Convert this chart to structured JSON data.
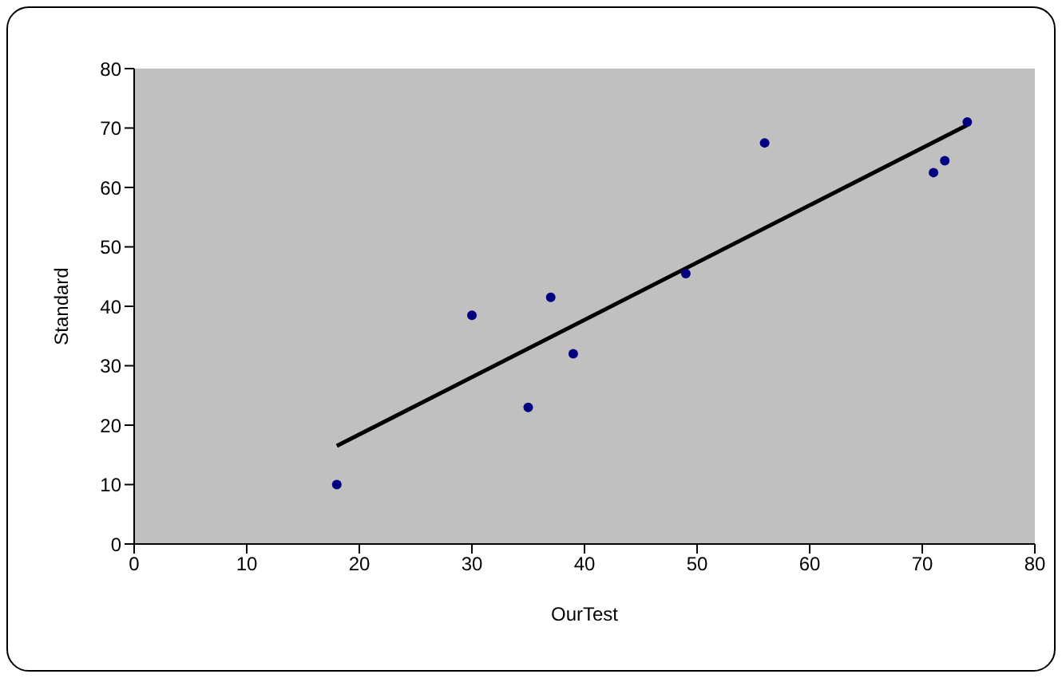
{
  "chart_data": {
    "type": "scatter",
    "xlabel": "OurTest",
    "ylabel": "Standard",
    "xlim": [
      0,
      80
    ],
    "ylim": [
      0,
      80
    ],
    "xticks": [
      0,
      10,
      20,
      30,
      40,
      50,
      60,
      70,
      80
    ],
    "yticks": [
      0,
      10,
      20,
      30,
      40,
      50,
      60,
      70,
      80
    ],
    "marker": "circle",
    "series": [
      {
        "color": "#000080",
        "x": [
          18,
          30,
          37,
          39,
          35,
          56,
          49,
          71,
          72,
          74
        ],
        "values": [
          10,
          38.5,
          41.5,
          32,
          23,
          67.5,
          45.5,
          62.5,
          64.5,
          71
        ]
      },
      {
        "type": "line",
        "marker": "none",
        "color": "#000000",
        "x": [
          18,
          74
        ],
        "values": [
          16.5,
          70.5
        ]
      }
    ]
  }
}
